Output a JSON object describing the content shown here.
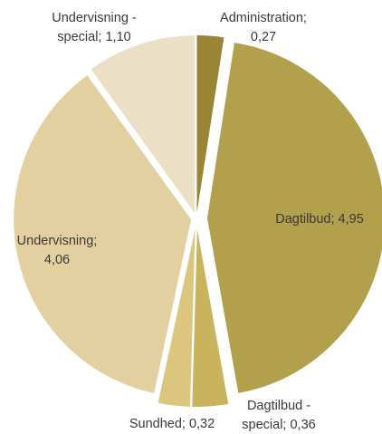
{
  "chart_data": {
    "type": "pie",
    "title": "",
    "slices": [
      {
        "category": "Administration",
        "value": 0.27,
        "value_text": "0,27",
        "color": "#9a8536"
      },
      {
        "category": "Dagtilbud",
        "value": 4.95,
        "value_text": "4,95",
        "color": "#b3a04c"
      },
      {
        "category": "Dagtilbud - special",
        "value": 0.36,
        "value_text": "0,36",
        "color": "#c9b35c"
      },
      {
        "category": "Sundhed",
        "value": 0.32,
        "value_text": "0,32",
        "color": "#dcc67e"
      },
      {
        "category": "Undervisning",
        "value": 4.06,
        "value_text": "4,06",
        "color": "#e2d0a0"
      },
      {
        "category": "Undervisning - special",
        "value": 1.1,
        "value_text": "1,10",
        "color": "#ebe0c6"
      }
    ],
    "labels": [
      {
        "lines": [
          "Administration;",
          "0,27"
        ]
      },
      {
        "lines": [
          "Dagtilbud; 4,95"
        ]
      },
      {
        "lines": [
          "Dagtilbud -",
          "special; 0,36"
        ]
      },
      {
        "lines": [
          "Sundhed; 0,32"
        ]
      },
      {
        "lines": [
          "Undervisning;",
          "4,06"
        ]
      },
      {
        "lines": [
          "Undervisning -",
          "special; 1,10"
        ]
      }
    ],
    "legend": "none"
  }
}
